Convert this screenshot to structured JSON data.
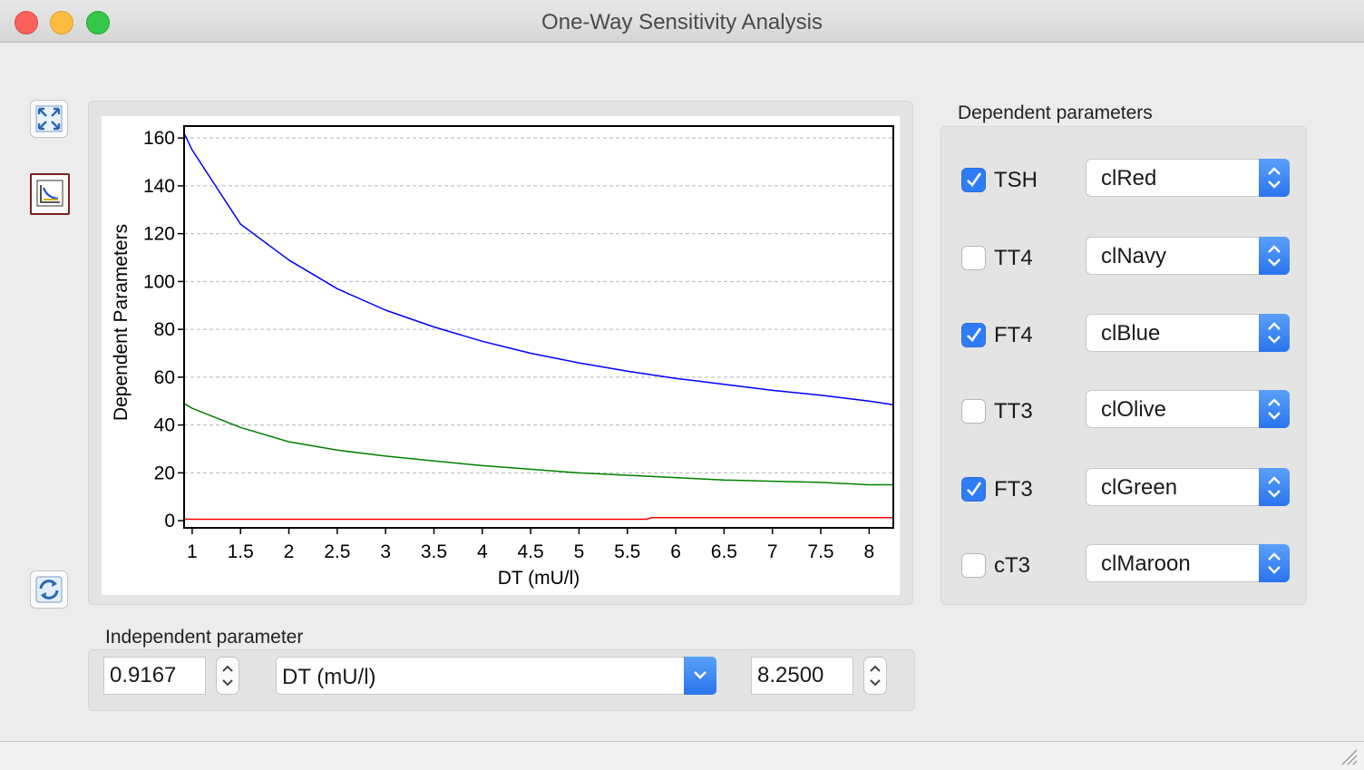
{
  "window": {
    "title": "One-Way Sensitivity Analysis"
  },
  "toolbar": {
    "fullscreen_icon": "expand-arrows-icon",
    "chart_icon": "line-chart-icon",
    "reset_icon": "refresh-icon"
  },
  "chart_data": {
    "type": "line",
    "xlabel": "DT (mU/l)",
    "ylabel": "Dependent Parameters",
    "xlim": [
      0.9167,
      8.25
    ],
    "ylim": [
      -3,
      165
    ],
    "xticks": [
      "1",
      "1.5",
      "2",
      "2.5",
      "3",
      "3.5",
      "4",
      "4.5",
      "5",
      "5.5",
      "6",
      "6.5",
      "7",
      "7.5",
      "8"
    ],
    "yticks": [
      "0",
      "20",
      "40",
      "60",
      "80",
      "100",
      "120",
      "140",
      "160"
    ],
    "grid": "horizontal",
    "series": [
      {
        "color": "#0000ff",
        "x": [
          0.9167,
          1,
          1.5,
          2,
          2.5,
          3,
          3.5,
          4,
          4.5,
          5,
          5.5,
          6,
          6.5,
          7,
          7.5,
          8,
          8.25
        ],
        "y": [
          162,
          155,
          124,
          109,
          97,
          88,
          81,
          75,
          70,
          66,
          62.5,
          59.5,
          57,
          54.5,
          52.5,
          50,
          48.5
        ]
      },
      {
        "color": "#008000",
        "x": [
          0.9167,
          1,
          1.5,
          2,
          2.5,
          3,
          3.5,
          4,
          4.5,
          5,
          5.5,
          6,
          6.5,
          7,
          7.5,
          8,
          8.25
        ],
        "y": [
          49,
          47,
          39,
          33,
          29.5,
          27,
          25,
          23,
          21.5,
          20,
          19,
          18,
          17,
          16.5,
          16,
          15,
          15
        ]
      },
      {
        "color": "#ff0000",
        "x": [
          0.9167,
          5.7,
          5.75,
          8.25
        ],
        "y": [
          0.6,
          0.6,
          1.3,
          1.3
        ]
      }
    ]
  },
  "dependent": {
    "title": "Dependent parameters",
    "items": [
      {
        "label": "TSH",
        "checked": true,
        "color": "clRed"
      },
      {
        "label": "TT4",
        "checked": false,
        "color": "clNavy"
      },
      {
        "label": "FT4",
        "checked": true,
        "color": "clBlue"
      },
      {
        "label": "TT3",
        "checked": false,
        "color": "clOlive"
      },
      {
        "label": "FT3",
        "checked": true,
        "color": "clGreen"
      },
      {
        "label": "cT3",
        "checked": false,
        "color": "clMaroon"
      }
    ]
  },
  "independent": {
    "title": "Independent parameter",
    "min": "0.9167",
    "parameter": "DT (mU/l)",
    "max": "8.2500"
  }
}
